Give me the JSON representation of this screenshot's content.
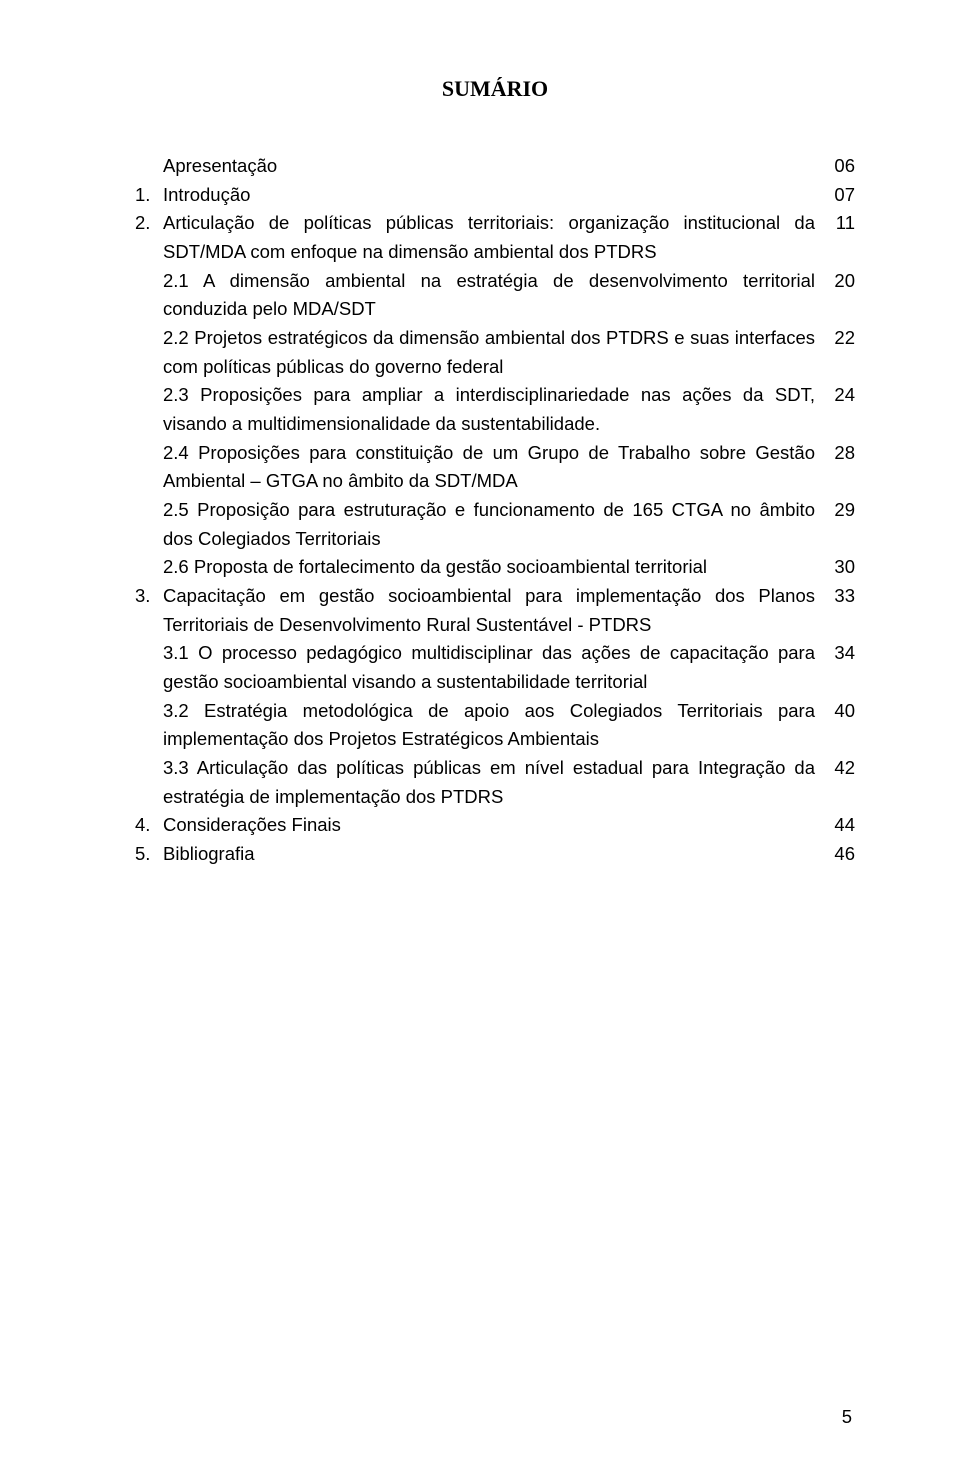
{
  "title": "SUMÁRIO",
  "pageNumberBottom": "5",
  "fontsize_body_pt": 14,
  "fontsize_title_pt": 16,
  "text_color": "#000000",
  "background_color": "#ffffff",
  "toc": {
    "rows": [
      {
        "num": "",
        "text": "Apresentação",
        "page": "06",
        "indent": 0
      },
      {
        "num": "1.",
        "text": "Introdução",
        "page": "07",
        "indent": 0
      },
      {
        "num": "2.",
        "text": "Articulação de políticas públicas territoriais: organização institucional da SDT/MDA com enfoque na dimensão ambiental dos PTDRS",
        "page": "11",
        "indent": 0
      },
      {
        "num": "",
        "text": "2.1 A dimensão ambiental na estratégia de desenvolvimento territorial conduzida pelo MDA/SDT",
        "page": "20",
        "indent": 1
      },
      {
        "num": "",
        "text": "2.2 Projetos estratégicos da dimensão ambiental dos PTDRS e suas interfaces com políticas públicas do governo federal",
        "page": "22",
        "indent": 1
      },
      {
        "num": "",
        "text": "2.3 Proposições para ampliar a interdisciplinariedade nas ações da SDT, visando a multidimensionalidade da sustentabilidade.",
        "page": "24",
        "indent": 1
      },
      {
        "num": "",
        "text": "2.4 Proposições para constituição de um Grupo de Trabalho sobre Gestão Ambiental – GTGA no âmbito da SDT/MDA",
        "page": "28",
        "indent": 1
      },
      {
        "num": "",
        "text": "2.5 Proposição para estruturação e funcionamento de 165 CTGA no âmbito dos Colegiados Territoriais",
        "page": "29",
        "indent": 1
      },
      {
        "num": "",
        "text": "2.6 Proposta de fortalecimento da gestão socioambiental territorial",
        "page": "30",
        "indent": 1
      },
      {
        "num": "3.",
        "text": "Capacitação em gestão socioambiental para implementação dos Planos Territoriais de Desenvolvimento Rural Sustentável - PTDRS",
        "page": "33",
        "indent": 0
      },
      {
        "num": "",
        "text": "3.1 O processo pedagógico multidisciplinar das ações de capacitação para gestão socioambiental visando a sustentabilidade territorial",
        "page": "34",
        "indent": 1
      },
      {
        "num": "",
        "text": "3.2 Estratégia metodológica de apoio aos Colegiados Territoriais para implementação dos Projetos Estratégicos Ambientais",
        "page": "40",
        "indent": 1
      },
      {
        "num": "",
        "text": "3.3 Articulação das políticas públicas em nível estadual para Integração da estratégia de implementação dos PTDRS",
        "page": "42",
        "indent": 1
      },
      {
        "num": "4.",
        "text": "Considerações Finais",
        "page": "44",
        "indent": 0
      },
      {
        "num": "5.",
        "text": "Bibliografia",
        "page": "46",
        "indent": 0
      }
    ]
  }
}
